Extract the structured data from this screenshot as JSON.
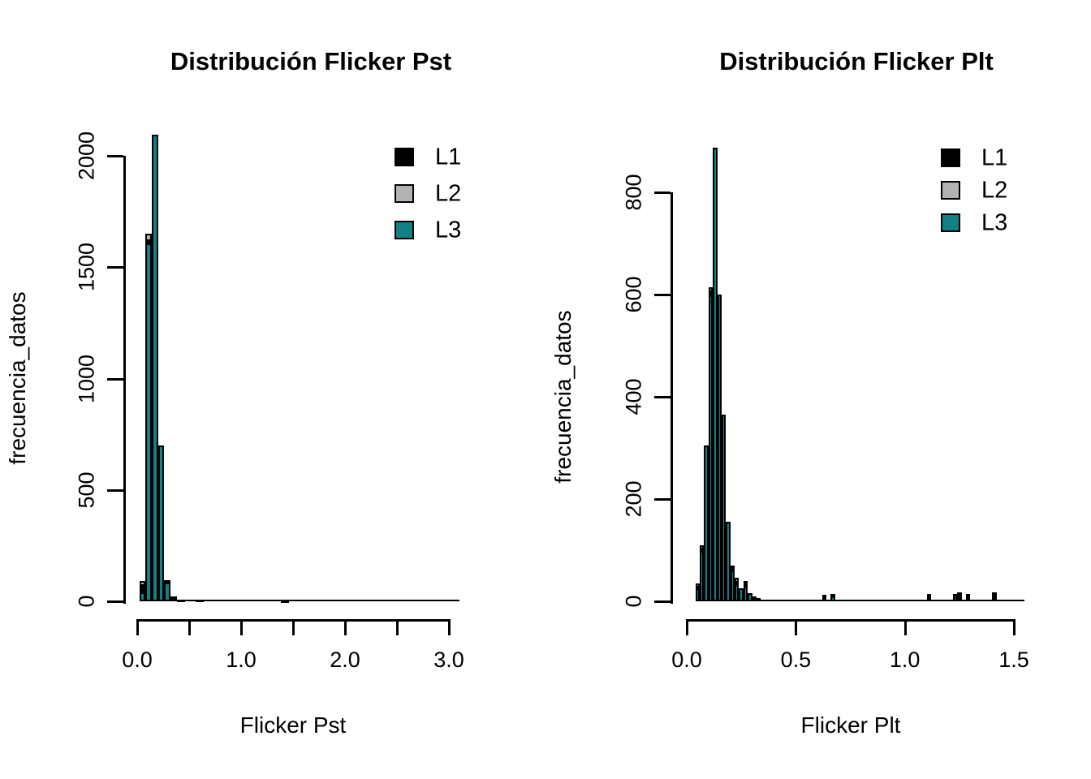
{
  "figure": {
    "background": "#ffffff",
    "series_colors": {
      "L1": "#000000",
      "L2": "#b3b3b3",
      "L3": "#128183"
    }
  },
  "plots": [
    {
      "title": "Distribución Flicker Pst",
      "xlabel": "Flicker Pst",
      "ylabel": "frecuencia_datos",
      "legend": {
        "items": [
          {
            "label": "L1",
            "color": "#000000"
          },
          {
            "label": "L2",
            "color": "#b3b3b3"
          },
          {
            "label": "L3",
            "color": "#128183"
          }
        ]
      },
      "chart_data": {
        "type": "histogram-overlay",
        "series": [
          "L1",
          "L2",
          "L3"
        ],
        "xlim": [
          0,
          3.1
        ],
        "ylim": [
          0,
          2100
        ],
        "x_ticks": [
          {
            "v": 0.0,
            "label": "0.0"
          },
          {
            "v": 0.5,
            "label": ""
          },
          {
            "v": 1.0,
            "label": "1.0"
          },
          {
            "v": 1.5,
            "label": ""
          },
          {
            "v": 2.0,
            "label": "2.0"
          },
          {
            "v": 2.5,
            "label": ""
          },
          {
            "v": 3.0,
            "label": "3.0"
          }
        ],
        "y_ticks": [
          {
            "v": 0,
            "label": "0"
          },
          {
            "v": 500,
            "label": "500"
          },
          {
            "v": 1000,
            "label": "1000"
          },
          {
            "v": 1500,
            "label": "1500"
          },
          {
            "v": 2000,
            "label": "2000"
          }
        ],
        "bins": [
          {
            "x0": 0.02,
            "x1": 0.08,
            "L2": 90,
            "L1": 75,
            "L3": 40
          },
          {
            "x0": 0.08,
            "x1": 0.14,
            "L2": 1650,
            "L1": 1625,
            "L3": 1605
          },
          {
            "x0": 0.14,
            "x1": 0.2,
            "L3": 2095
          },
          {
            "x0": 0.2,
            "x1": 0.26,
            "L3": 700
          },
          {
            "x0": 0.26,
            "x1": 0.32,
            "L1": 95,
            "L3": 82
          },
          {
            "x0": 0.32,
            "x1": 0.38,
            "L1": 22
          },
          {
            "x0": 0.38,
            "x1": 0.46,
            "L1": 8
          },
          {
            "x0": 0.56,
            "x1": 0.64,
            "L1": 8
          },
          {
            "x0": 1.38,
            "x1": 1.46,
            "L1": 5
          }
        ]
      }
    },
    {
      "title": "Distribución Flicker Plt",
      "xlabel": "Flicker Plt",
      "ylabel": "frecuencia_datos",
      "legend": {
        "items": [
          {
            "label": "L1",
            "color": "#000000"
          },
          {
            "label": "L2",
            "color": "#b3b3b3"
          },
          {
            "label": "L3",
            "color": "#128183"
          }
        ]
      },
      "chart_data": {
        "type": "histogram-overlay",
        "series": [
          "L1",
          "L2",
          "L3"
        ],
        "xlim": [
          0,
          1.55
        ],
        "ylim": [
          0,
          900
        ],
        "x_ticks": [
          {
            "v": 0.0,
            "label": "0.0"
          },
          {
            "v": 0.5,
            "label": "0.5"
          },
          {
            "v": 1.0,
            "label": "1.0"
          },
          {
            "v": 1.5,
            "label": "1.5"
          }
        ],
        "y_ticks": [
          {
            "v": 0,
            "label": "0"
          },
          {
            "v": 200,
            "label": "200"
          },
          {
            "v": 400,
            "label": "400"
          },
          {
            "v": 600,
            "label": "600"
          },
          {
            "v": 800,
            "label": "800"
          }
        ],
        "bins": [
          {
            "x0": 0.04,
            "x1": 0.06,
            "L2": 35,
            "L1": 30,
            "L3": 25
          },
          {
            "x0": 0.06,
            "x1": 0.08,
            "L2": 110,
            "L1": 105,
            "L3": 98
          },
          {
            "x0": 0.08,
            "x1": 0.1,
            "L3": 305
          },
          {
            "x0": 0.1,
            "x1": 0.12,
            "L2": 615,
            "L1": 608,
            "L3": 598
          },
          {
            "x0": 0.12,
            "x1": 0.14,
            "L3": 888
          },
          {
            "x0": 0.14,
            "x1": 0.16,
            "L3": 600
          },
          {
            "x0": 0.16,
            "x1": 0.18,
            "L3": 365
          },
          {
            "x0": 0.18,
            "x1": 0.2,
            "L3": 155
          },
          {
            "x0": 0.2,
            "x1": 0.22,
            "L1": 70,
            "L3": 60
          },
          {
            "x0": 0.22,
            "x1": 0.24,
            "L2": 46,
            "L1": 40,
            "L3": 34
          },
          {
            "x0": 0.24,
            "x1": 0.26,
            "L3": 25
          },
          {
            "x0": 0.26,
            "x1": 0.28,
            "L2": 40,
            "L1": 36,
            "L3": 28
          },
          {
            "x0": 0.28,
            "x1": 0.3,
            "L3": 16
          },
          {
            "x0": 0.3,
            "x1": 0.32,
            "L1": 10
          },
          {
            "x0": 0.32,
            "x1": 0.34,
            "L1": 7
          },
          {
            "x0": 0.62,
            "x1": 0.64,
            "L1": 13
          },
          {
            "x0": 0.66,
            "x1": 0.68,
            "L1": 15,
            "L3": 10
          },
          {
            "x0": 1.1,
            "x1": 1.12,
            "L1": 15
          },
          {
            "x0": 1.22,
            "x1": 1.24,
            "L1": 15,
            "L3": 12
          },
          {
            "x0": 1.24,
            "x1": 1.26,
            "L1": 18
          },
          {
            "x0": 1.28,
            "x1": 1.3,
            "L1": 15
          },
          {
            "x0": 1.4,
            "x1": 1.42,
            "L1": 18
          }
        ]
      }
    }
  ]
}
